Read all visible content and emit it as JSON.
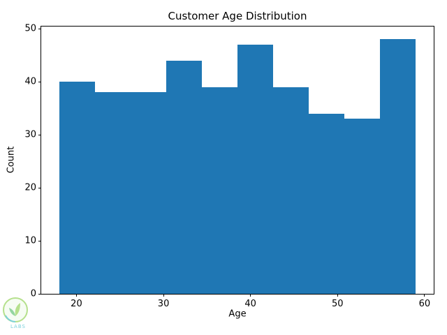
{
  "figure": {
    "title": "Customer Age Distribution",
    "xlabel": "Age",
    "ylabel": "Count"
  },
  "watermark": {
    "text": "LABS"
  },
  "chart_data": {
    "type": "bar",
    "subtype": "histogram",
    "title": "Customer Age Distribution",
    "xlabel": "Age",
    "ylabel": "Count",
    "bin_edges": [
      18,
      22.1,
      26.2,
      30.3,
      34.4,
      38.5,
      42.6,
      46.7,
      50.8,
      54.9,
      59
    ],
    "values": [
      40,
      38,
      38,
      44,
      39,
      47,
      39,
      34,
      33,
      48
    ],
    "bar_color": "#1f77b4",
    "xlim": [
      15.95,
      61.05
    ],
    "ylim": [
      0,
      50.4
    ],
    "xticks": [
      20,
      30,
      40,
      50,
      60
    ],
    "yticks": [
      0,
      10,
      20,
      30,
      40,
      50
    ],
    "grid": false,
    "legend": null
  }
}
